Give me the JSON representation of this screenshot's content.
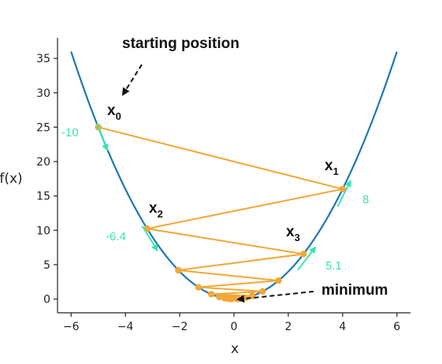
{
  "chart_data": {
    "type": "line",
    "title": "",
    "xlabel": "x",
    "ylabel": "f(x)",
    "xlim": [
      -6.5,
      6.5
    ],
    "ylim": [
      -2,
      38
    ],
    "xticks": [
      -6,
      -4,
      -2,
      0,
      2,
      4,
      6
    ],
    "yticks": [
      0,
      5,
      10,
      15,
      20,
      25,
      30,
      35
    ],
    "grid": false,
    "function": "x^2",
    "series": [
      {
        "kind": "curve",
        "color": "#1f77b4",
        "x": [
          -6,
          -5,
          -4,
          -3,
          -2,
          -1,
          0,
          1,
          2,
          3,
          4,
          5,
          6
        ],
        "y": [
          36,
          25,
          16,
          9,
          4,
          1,
          0,
          1,
          4,
          9,
          16,
          25,
          36
        ]
      },
      {
        "kind": "gradient-descent-path",
        "color": "#f0a838",
        "x": [
          -5.0,
          4.0,
          -3.2,
          2.56,
          -2.05,
          1.64,
          -1.31,
          1.05,
          -0.84,
          0.67,
          -0.54,
          0.43,
          -0.34,
          0.27,
          -0.22,
          0.17,
          -0.14,
          0.11,
          -0.09
        ],
        "y": [
          25.0,
          16.0,
          10.24,
          6.55,
          4.19,
          2.68,
          1.72,
          1.1,
          0.7,
          0.45,
          0.29,
          0.18,
          0.12,
          0.08,
          0.05,
          0.03,
          0.02,
          0.01,
          0.01
        ]
      }
    ],
    "annotations": [
      {
        "text": "starting position",
        "arrow_to": [
          -4.4,
          28.5
        ],
        "style": "dashed"
      },
      {
        "text": "minimum",
        "arrow_to": [
          0.1,
          0.1
        ],
        "style": "dashed"
      }
    ],
    "point_labels": [
      {
        "main": "x",
        "sub": "0"
      },
      {
        "main": "x",
        "sub": "1"
      },
      {
        "main": "x",
        "sub": "2"
      },
      {
        "main": "x",
        "sub": "3"
      }
    ],
    "gradient_labels": [
      {
        "text": "-10",
        "direction": "down",
        "at": -5.0
      },
      {
        "text": "8",
        "direction": "up",
        "at": 4.0
      },
      {
        "text": "-6.4",
        "direction": "down",
        "at": -3.2
      },
      {
        "text": "5.1",
        "direction": "up",
        "at": 2.56
      }
    ],
    "gradient_color": "#3de3b2"
  }
}
